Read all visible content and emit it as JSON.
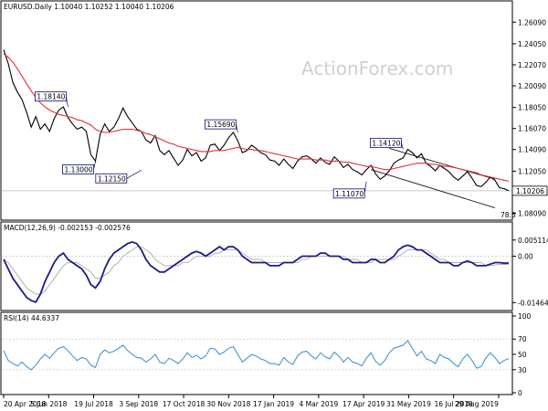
{
  "colors": {
    "price": "#000000",
    "ema": "#e03030",
    "channel": "#1a1a1a",
    "macd_main": "#1c1c8a",
    "macd_signal": "#b0b0b0",
    "rsi": "#2f8fd0",
    "annotation_text": "#0a0a7a",
    "annotation_border": "#0a0a7a",
    "current_box": "#000000",
    "grid": "#c0c0c0",
    "watermark": "#cfcfcf"
  },
  "header": {
    "price": "EURUSD.Daily  1.10040 1.10252 1.10040 1.10206",
    "macd": "MACD(12,26,9) -0.002153 -0.002576",
    "rsi": "RSI(14) 44.6337"
  },
  "watermark": "ActionForex.com",
  "chart_data": [
    {
      "type": "line",
      "name": "price",
      "x_ticks": [
        "20 Apr 2018",
        "5 Jun 2018",
        "19 Jul 2018",
        "3 Sep 2018",
        "17 Oct 2018",
        "30 Nov 2018",
        "17 Jan 2019",
        "4 Mar 2019",
        "17 Apr 2019",
        "31 May 2019",
        "16 Jul 2019",
        "29 Aug 2019"
      ],
      "y_ticks": [
        "1.26090",
        "1.24050",
        "1.22070",
        "1.20090",
        "1.18050",
        "1.16070",
        "1.14090",
        "1.12050",
        "1.10070",
        "1.08090"
      ],
      "ylim": [
        1.077,
        1.268
      ],
      "current_value": "1.10206",
      "fib_label": "78.6",
      "series": [
        {
          "values": [
            1.235,
            1.222,
            1.204,
            1.195,
            1.188,
            1.176,
            1.162,
            1.172,
            1.16,
            1.165,
            1.158,
            1.17,
            1.178,
            1.181,
            1.171,
            1.165,
            1.16,
            1.162,
            1.158,
            1.136,
            1.13,
            1.155,
            1.165,
            1.158,
            1.162,
            1.17,
            1.18,
            1.172,
            1.166,
            1.16,
            1.158,
            1.15,
            1.147,
            1.154,
            1.14,
            1.136,
            1.14,
            1.133,
            1.126,
            1.131,
            1.141,
            1.135,
            1.138,
            1.13,
            1.133,
            1.145,
            1.146,
            1.14,
            1.145,
            1.152,
            1.157,
            1.149,
            1.138,
            1.14,
            1.145,
            1.142,
            1.138,
            1.136,
            1.131,
            1.13,
            1.126,
            1.132,
            1.127,
            1.123,
            1.13,
            1.134,
            1.135,
            1.132,
            1.128,
            1.133,
            1.129,
            1.127,
            1.134,
            1.13,
            1.124,
            1.127,
            1.122,
            1.12,
            1.117,
            1.122,
            1.126,
            1.118,
            1.113,
            1.116,
            1.121,
            1.128,
            1.131,
            1.133,
            1.141,
            1.138,
            1.133,
            1.137,
            1.128,
            1.125,
            1.121,
            1.126,
            1.123,
            1.12,
            1.115,
            1.112,
            1.116,
            1.12,
            1.114,
            1.107,
            1.106,
            1.11,
            1.115,
            1.112,
            1.105,
            1.104,
            1.102
          ]
        }
      ],
      "ema_values": [
        1.231,
        1.228,
        1.223,
        1.217,
        1.21,
        1.203,
        1.196,
        1.19,
        1.185,
        1.181,
        1.178,
        1.176,
        1.174,
        1.173,
        1.172,
        1.171,
        1.169,
        1.168,
        1.166,
        1.164,
        1.16,
        1.158,
        1.157,
        1.157,
        1.158,
        1.159,
        1.16,
        1.16,
        1.16,
        1.159,
        1.158,
        1.156,
        1.155,
        1.153,
        1.151,
        1.149,
        1.147,
        1.146,
        1.144,
        1.143,
        1.142,
        1.141,
        1.14,
        1.139,
        1.139,
        1.139,
        1.14,
        1.14,
        1.14,
        1.141,
        1.142,
        1.143,
        1.142,
        1.141,
        1.141,
        1.14,
        1.14,
        1.139,
        1.138,
        1.137,
        1.136,
        1.135,
        1.134,
        1.133,
        1.132,
        1.132,
        1.132,
        1.132,
        1.131,
        1.131,
        1.131,
        1.13,
        1.13,
        1.13,
        1.129,
        1.129,
        1.128,
        1.127,
        1.126,
        1.125,
        1.125,
        1.124,
        1.123,
        1.122,
        1.122,
        1.123,
        1.124,
        1.125,
        1.126,
        1.127,
        1.128,
        1.128,
        1.128,
        1.127,
        1.127,
        1.126,
        1.125,
        1.125,
        1.124,
        1.123,
        1.122,
        1.121,
        1.12,
        1.119,
        1.117,
        1.116,
        1.115,
        1.114,
        1.113,
        1.112,
        1.111
      ],
      "annotations": [
        {
          "label": "1.18140",
          "x_index": 14,
          "value": 1.1814
        },
        {
          "label": "1.13000",
          "x_index": 20,
          "value": 1.13
        },
        {
          "label": "1.15690",
          "x_index": 51,
          "value": 1.1569
        },
        {
          "label": "1.12150",
          "x_index": 30,
          "value": 1.1215
        },
        {
          "label": "1.14120",
          "x_index": 87,
          "value": 1.1412
        },
        {
          "label": "1.11070",
          "x_index": 79,
          "value": 1.1107
        }
      ],
      "channel_upper": {
        "x_index": [
          84,
          107
        ],
        "values": [
          1.142,
          1.113
        ]
      },
      "channel_lower": {
        "x_index": [
          80,
          107
        ],
        "values": [
          1.122,
          1.086
        ]
      }
    },
    {
      "type": "line",
      "name": "macd",
      "y_ticks": [
        "0.005114",
        "0.00",
        "-0.014647"
      ],
      "ylim": [
        -0.016,
        0.0065
      ],
      "series": [
        {
          "name": "main",
          "values": [
            -0.001,
            -0.004,
            -0.007,
            -0.009,
            -0.011,
            -0.013,
            -0.014,
            -0.0145,
            -0.012,
            -0.008,
            -0.005,
            -0.002,
            0.0,
            0.001,
            -0.001,
            -0.002,
            -0.003,
            -0.004,
            -0.006,
            -0.009,
            -0.01,
            -0.008,
            -0.004,
            -0.001,
            0.001,
            0.002,
            0.003,
            0.004,
            0.0045,
            0.004,
            0.002,
            -0.001,
            -0.003,
            -0.004,
            -0.005,
            -0.005,
            -0.004,
            -0.003,
            -0.002,
            -0.001,
            0.0,
            0.001,
            0.0015,
            0.001,
            0.0,
            0.001,
            0.002,
            0.003,
            0.002,
            0.003,
            0.003,
            0.002,
            0.0,
            -0.001,
            -0.002,
            -0.002,
            -0.002,
            -0.002,
            -0.003,
            -0.003,
            -0.003,
            -0.002,
            -0.002,
            -0.002,
            -0.001,
            0.0,
            0.0,
            0.0,
            0.0,
            0.001,
            0.001,
            0.0,
            0.0,
            0.0,
            -0.001,
            -0.001,
            -0.002,
            -0.002,
            -0.002,
            -0.002,
            -0.001,
            -0.001,
            -0.002,
            -0.002,
            -0.001,
            0.0,
            0.002,
            0.003,
            0.0035,
            0.003,
            0.002,
            0.002,
            0.001,
            0.0,
            -0.001,
            -0.002,
            -0.002,
            -0.002,
            -0.003,
            -0.003,
            -0.002,
            -0.0015,
            -0.002,
            -0.003,
            -0.003,
            -0.003,
            -0.0025,
            -0.002,
            -0.002,
            -0.0022,
            -0.002153
          ]
        },
        {
          "name": "signal",
          "values": [
            -0.001,
            -0.002,
            -0.004,
            -0.006,
            -0.008,
            -0.01,
            -0.011,
            -0.012,
            -0.012,
            -0.011,
            -0.009,
            -0.007,
            -0.005,
            -0.003,
            -0.002,
            -0.002,
            -0.002,
            -0.003,
            -0.004,
            -0.005,
            -0.007,
            -0.007,
            -0.006,
            -0.005,
            -0.003,
            -0.002,
            0.0,
            0.001,
            0.002,
            0.003,
            0.003,
            0.002,
            0.001,
            -0.001,
            -0.002,
            -0.003,
            -0.003,
            -0.003,
            -0.003,
            -0.002,
            -0.002,
            -0.001,
            0.0,
            0.0,
            0.0,
            0.0,
            0.001,
            0.001,
            0.002,
            0.002,
            0.002,
            0.002,
            0.001,
            0.0,
            -0.001,
            -0.001,
            -0.001,
            -0.002,
            -0.002,
            -0.002,
            -0.002,
            -0.002,
            -0.002,
            -0.002,
            -0.002,
            -0.001,
            -0.001,
            0.0,
            0.0,
            0.0,
            0.0,
            0.0,
            0.0,
            0.0,
            0.0,
            -0.001,
            -0.001,
            -0.001,
            -0.002,
            -0.002,
            -0.002,
            -0.001,
            -0.001,
            -0.001,
            -0.001,
            -0.001,
            0.0,
            0.001,
            0.002,
            0.002,
            0.002,
            0.002,
            0.002,
            0.001,
            0.0,
            -0.001,
            -0.001,
            -0.002,
            -0.002,
            -0.002,
            -0.002,
            -0.002,
            -0.002,
            -0.002,
            -0.002,
            -0.003,
            -0.003,
            -0.0028,
            -0.0026,
            -0.0026,
            -0.002576
          ]
        }
      ]
    },
    {
      "type": "line",
      "name": "rsi",
      "y_ticks": [
        "100",
        "70",
        "50",
        "30",
        "0"
      ],
      "ylim": [
        0,
        100
      ],
      "series": [
        {
          "name": "RSI(14)",
          "values": [
            55,
            42,
            38,
            35,
            40,
            34,
            30,
            36,
            44,
            50,
            45,
            52,
            58,
            60,
            55,
            48,
            42,
            46,
            44,
            36,
            33,
            50,
            56,
            52,
            54,
            58,
            62,
            55,
            50,
            46,
            45,
            40,
            44,
            50,
            40,
            38,
            45,
            42,
            38,
            44,
            52,
            46,
            49,
            44,
            48,
            58,
            57,
            50,
            53,
            58,
            60,
            50,
            40,
            45,
            50,
            48,
            44,
            42,
            38,
            38,
            36,
            46,
            40,
            37,
            48,
            53,
            54,
            48,
            44,
            52,
            47,
            44,
            53,
            48,
            40,
            46,
            40,
            38,
            35,
            45,
            52,
            41,
            36,
            42,
            52,
            58,
            60,
            62,
            68,
            58,
            48,
            54,
            44,
            42,
            38,
            50,
            46,
            44,
            38,
            34,
            44,
            50,
            42,
            32,
            34,
            45,
            52,
            46,
            38,
            42,
            44.6337
          ]
        }
      ]
    }
  ]
}
